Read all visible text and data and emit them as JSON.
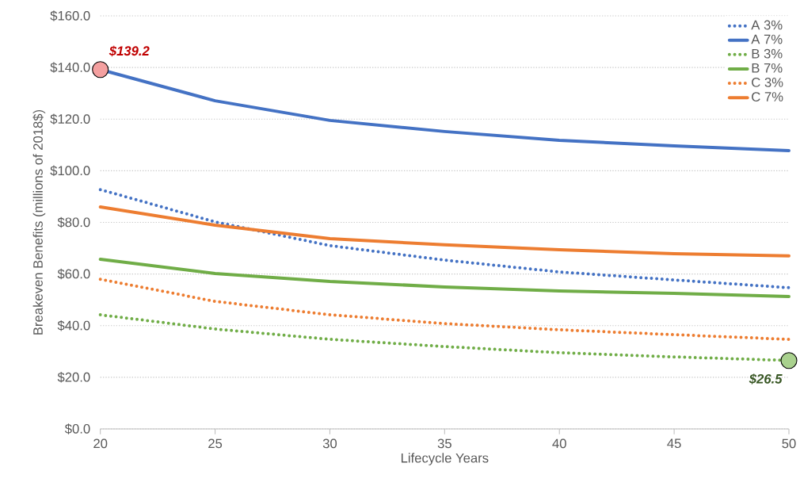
{
  "chart_data": {
    "type": "line",
    "xlabel": "Lifecycle Years",
    "ylabel": "Breakeven Benefits (millions of 2018$)",
    "x": [
      20,
      25,
      30,
      35,
      40,
      45,
      50
    ],
    "series": [
      {
        "name": "A 3%",
        "color": "#4472c4",
        "line_style": "dotted",
        "values": [
          92.7,
          80.2,
          71.0,
          65.4,
          60.8,
          57.7,
          54.7
        ]
      },
      {
        "name": "A 7%",
        "color": "#4472c4",
        "line_style": "solid",
        "values": [
          139.2,
          127.1,
          119.5,
          115.2,
          111.8,
          109.6,
          107.8
        ]
      },
      {
        "name": "B 3%",
        "color": "#70ad47",
        "line_style": "dotted",
        "values": [
          44.2,
          38.7,
          34.7,
          31.9,
          29.5,
          27.9,
          26.5
        ]
      },
      {
        "name": "B 7%",
        "color": "#70ad47",
        "line_style": "solid",
        "values": [
          65.7,
          60.2,
          57.1,
          55.0,
          53.4,
          52.5,
          51.3
        ]
      },
      {
        "name": "C 3%",
        "color": "#ed7d31",
        "line_style": "dotted",
        "values": [
          58.0,
          49.4,
          44.2,
          40.8,
          38.4,
          36.5,
          34.7
        ]
      },
      {
        "name": "C 7%",
        "color": "#ed7d31",
        "line_style": "solid",
        "values": [
          86.0,
          78.9,
          73.7,
          71.3,
          69.4,
          67.9,
          67.0
        ]
      }
    ],
    "xlim": [
      20,
      50
    ],
    "xticks": [
      20,
      25,
      30,
      35,
      40,
      45,
      50
    ],
    "ylim": [
      0,
      160
    ],
    "yticks": [
      {
        "value": 0,
        "label": "$0.0"
      },
      {
        "value": 20,
        "label": "$20.0"
      },
      {
        "value": 40,
        "label": "$40.0"
      },
      {
        "value": 60,
        "label": "$60.0"
      },
      {
        "value": 80,
        "label": "$80.0"
      },
      {
        "value": 100,
        "label": "$100.0"
      },
      {
        "value": 120,
        "label": "$120.0"
      },
      {
        "value": 140,
        "label": "$140.0"
      },
      {
        "value": 160,
        "label": "$160.0"
      }
    ],
    "annotations": [
      {
        "text": "$139.2",
        "x": 20,
        "y": 139.2
      },
      {
        "text": "$26.5",
        "x": 50,
        "y": 26.5
      }
    ],
    "grid": "y",
    "legend": "top right",
    "marker": "none"
  }
}
